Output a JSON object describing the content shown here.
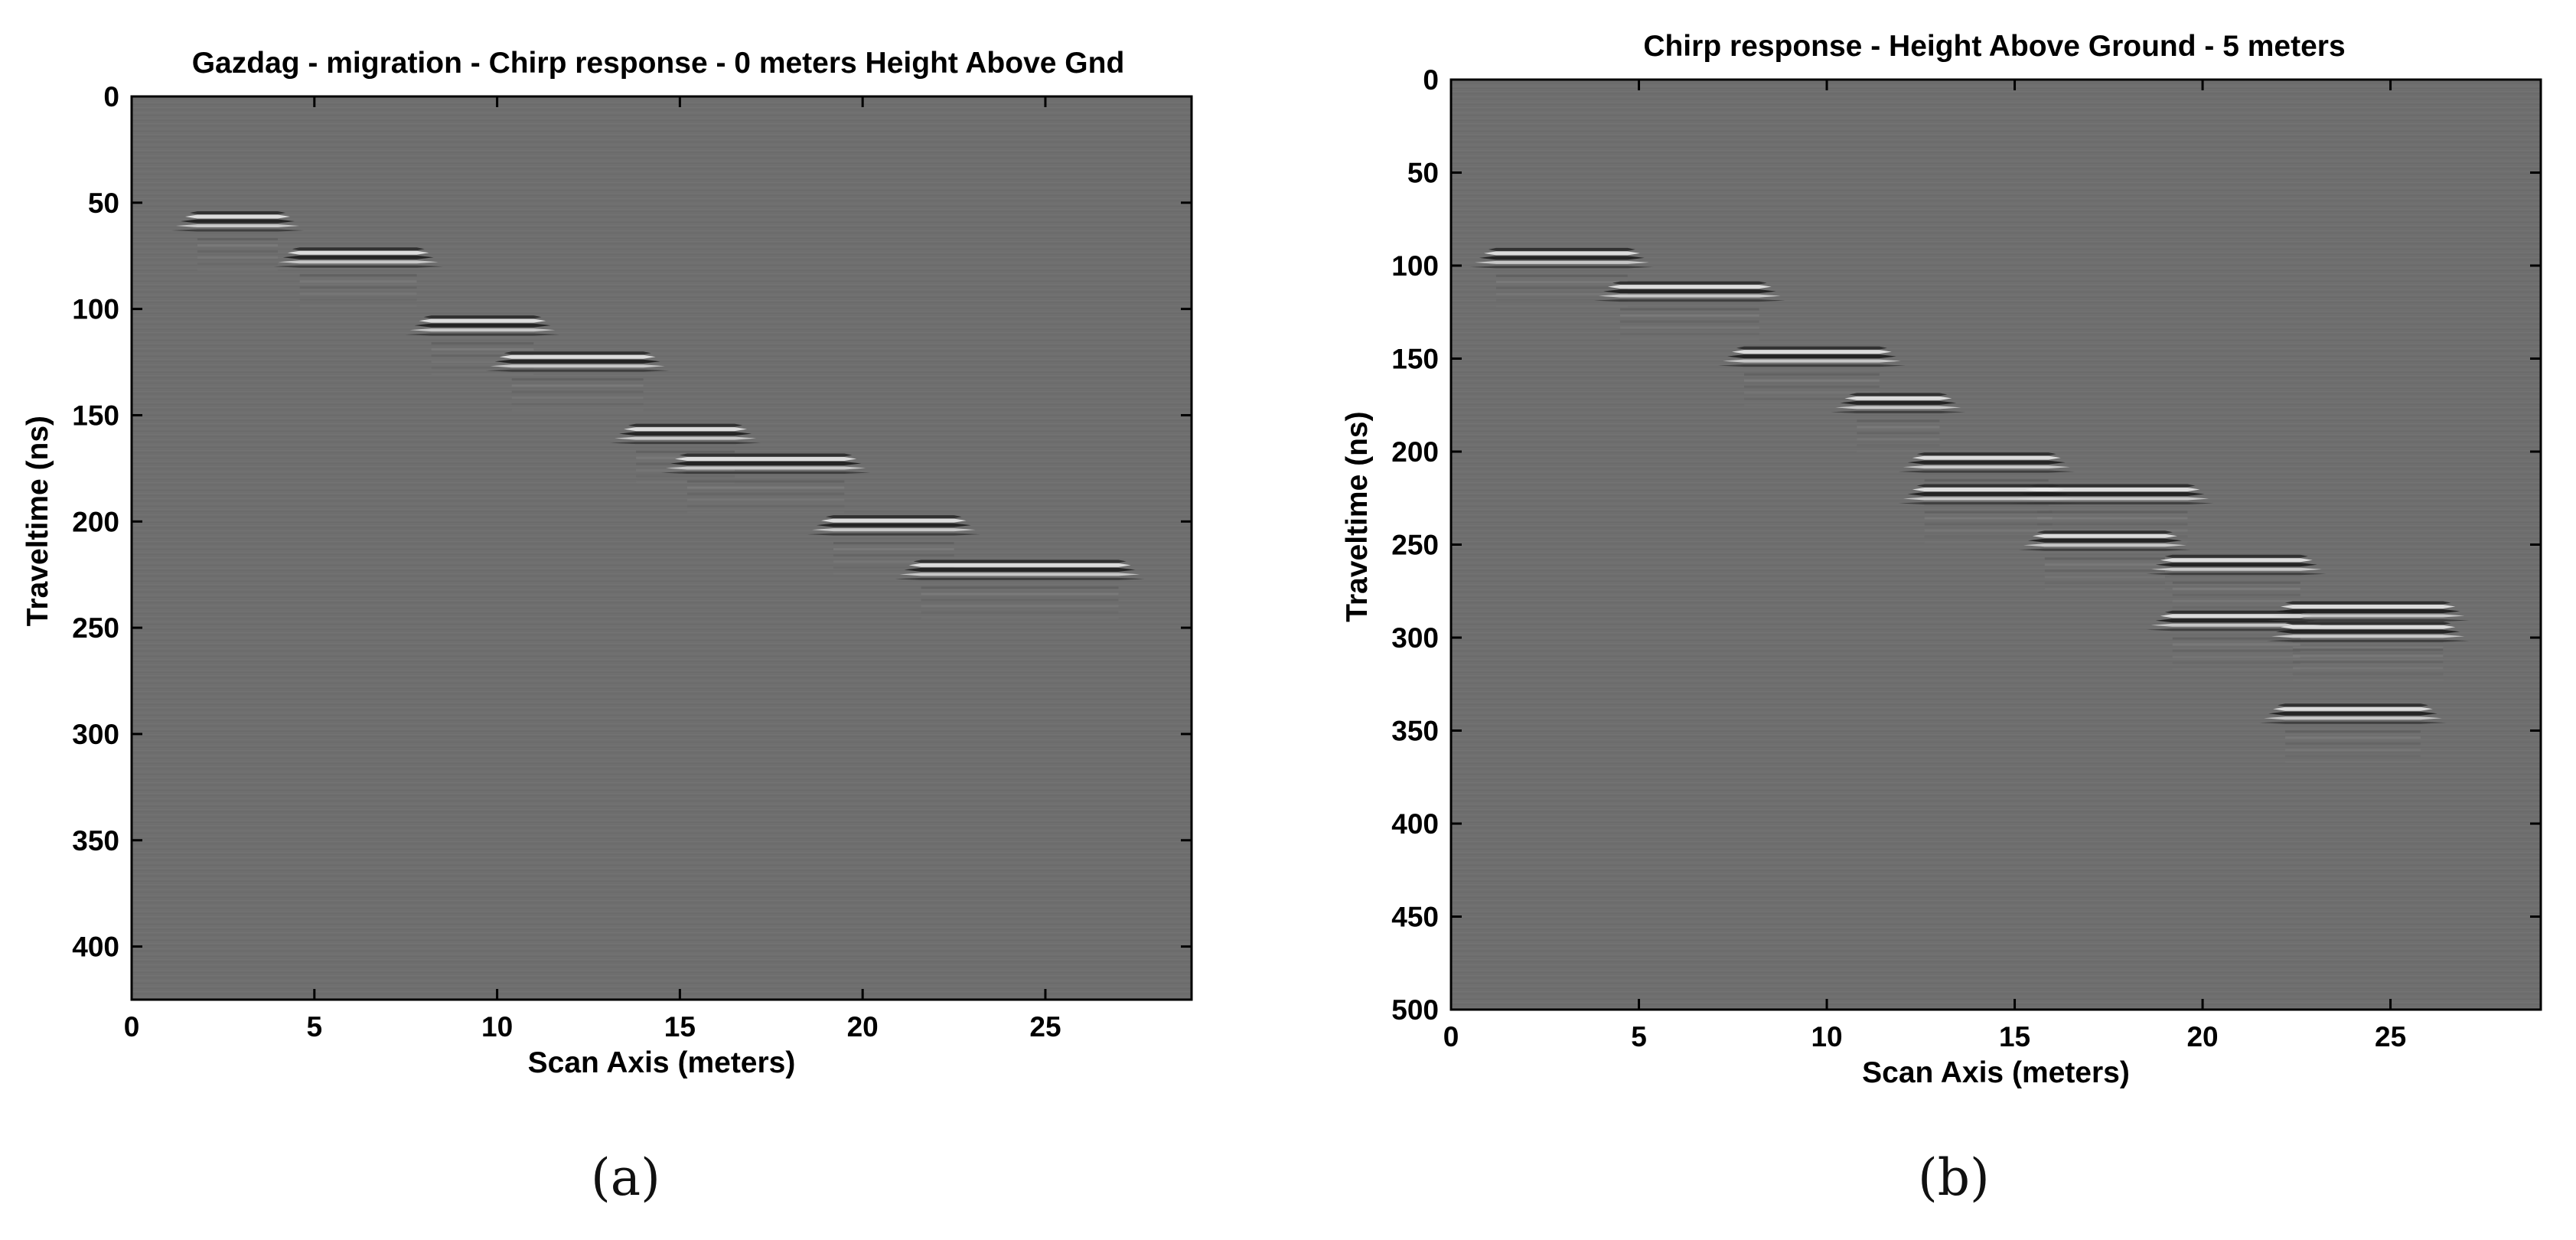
{
  "figure": {
    "panel_labels": [
      "(a)",
      "(b)"
    ]
  },
  "chart_data": [
    {
      "type": "heatmap",
      "title": "Gazdag - migration - Chirp response - 0 meters Height Above Gnd",
      "xlabel": "Scan Axis (meters)",
      "ylabel": "Traveltime (ns)",
      "xlim": [
        0,
        29
      ],
      "ylim": [
        0,
        425
      ],
      "y_reversed": true,
      "xticks": [
        0,
        5,
        10,
        15,
        20,
        25
      ],
      "yticks": [
        0,
        50,
        100,
        150,
        200,
        250,
        300,
        350,
        400
      ],
      "grid": false,
      "colormap": "gray",
      "background_color": "#6e6e6e",
      "reflections": [
        {
          "x_start": 1.8,
          "x_end": 4.0,
          "t": 58
        },
        {
          "x_start": 4.6,
          "x_end": 7.8,
          "t": 75
        },
        {
          "x_start": 8.2,
          "x_end": 11.0,
          "t": 107
        },
        {
          "x_start": 10.4,
          "x_end": 14.0,
          "t": 124
        },
        {
          "x_start": 13.8,
          "x_end": 16.5,
          "t": 158
        },
        {
          "x_start": 15.2,
          "x_end": 19.5,
          "t": 172
        },
        {
          "x_start": 19.2,
          "x_end": 22.5,
          "t": 201
        },
        {
          "x_start": 21.6,
          "x_end": 27.0,
          "t": 222
        }
      ]
    },
    {
      "type": "heatmap",
      "title": "Chirp response - Height Above Ground - 5 meters",
      "xlabel": "Scan Axis (meters)",
      "ylabel": "Traveltime (ns)",
      "xlim": [
        0,
        29
      ],
      "ylim": [
        0,
        500
      ],
      "y_reversed": true,
      "xticks": [
        0,
        5,
        10,
        15,
        20,
        25
      ],
      "yticks": [
        0,
        50,
        100,
        150,
        200,
        250,
        300,
        350,
        400,
        450,
        500
      ],
      "grid": false,
      "colormap": "gray",
      "background_color": "#6e6e6e",
      "reflections": [
        {
          "x_start": 1.2,
          "x_end": 4.7,
          "t": 95
        },
        {
          "x_start": 4.5,
          "x_end": 8.2,
          "t": 113
        },
        {
          "x_start": 7.8,
          "x_end": 11.4,
          "t": 148
        },
        {
          "x_start": 10.8,
          "x_end": 13.0,
          "t": 173
        },
        {
          "x_start": 12.6,
          "x_end": 15.9,
          "t": 205
        },
        {
          "x_start": 12.6,
          "x_end": 16.0,
          "t": 222
        },
        {
          "x_start": 15.6,
          "x_end": 19.6,
          "t": 222
        },
        {
          "x_start": 15.8,
          "x_end": 19.0,
          "t": 247
        },
        {
          "x_start": 19.2,
          "x_end": 22.6,
          "t": 260
        },
        {
          "x_start": 19.2,
          "x_end": 22.6,
          "t": 290
        },
        {
          "x_start": 22.4,
          "x_end": 26.4,
          "t": 285
        },
        {
          "x_start": 22.4,
          "x_end": 26.4,
          "t": 296
        },
        {
          "x_start": 22.2,
          "x_end": 25.8,
          "t": 340
        }
      ]
    }
  ]
}
